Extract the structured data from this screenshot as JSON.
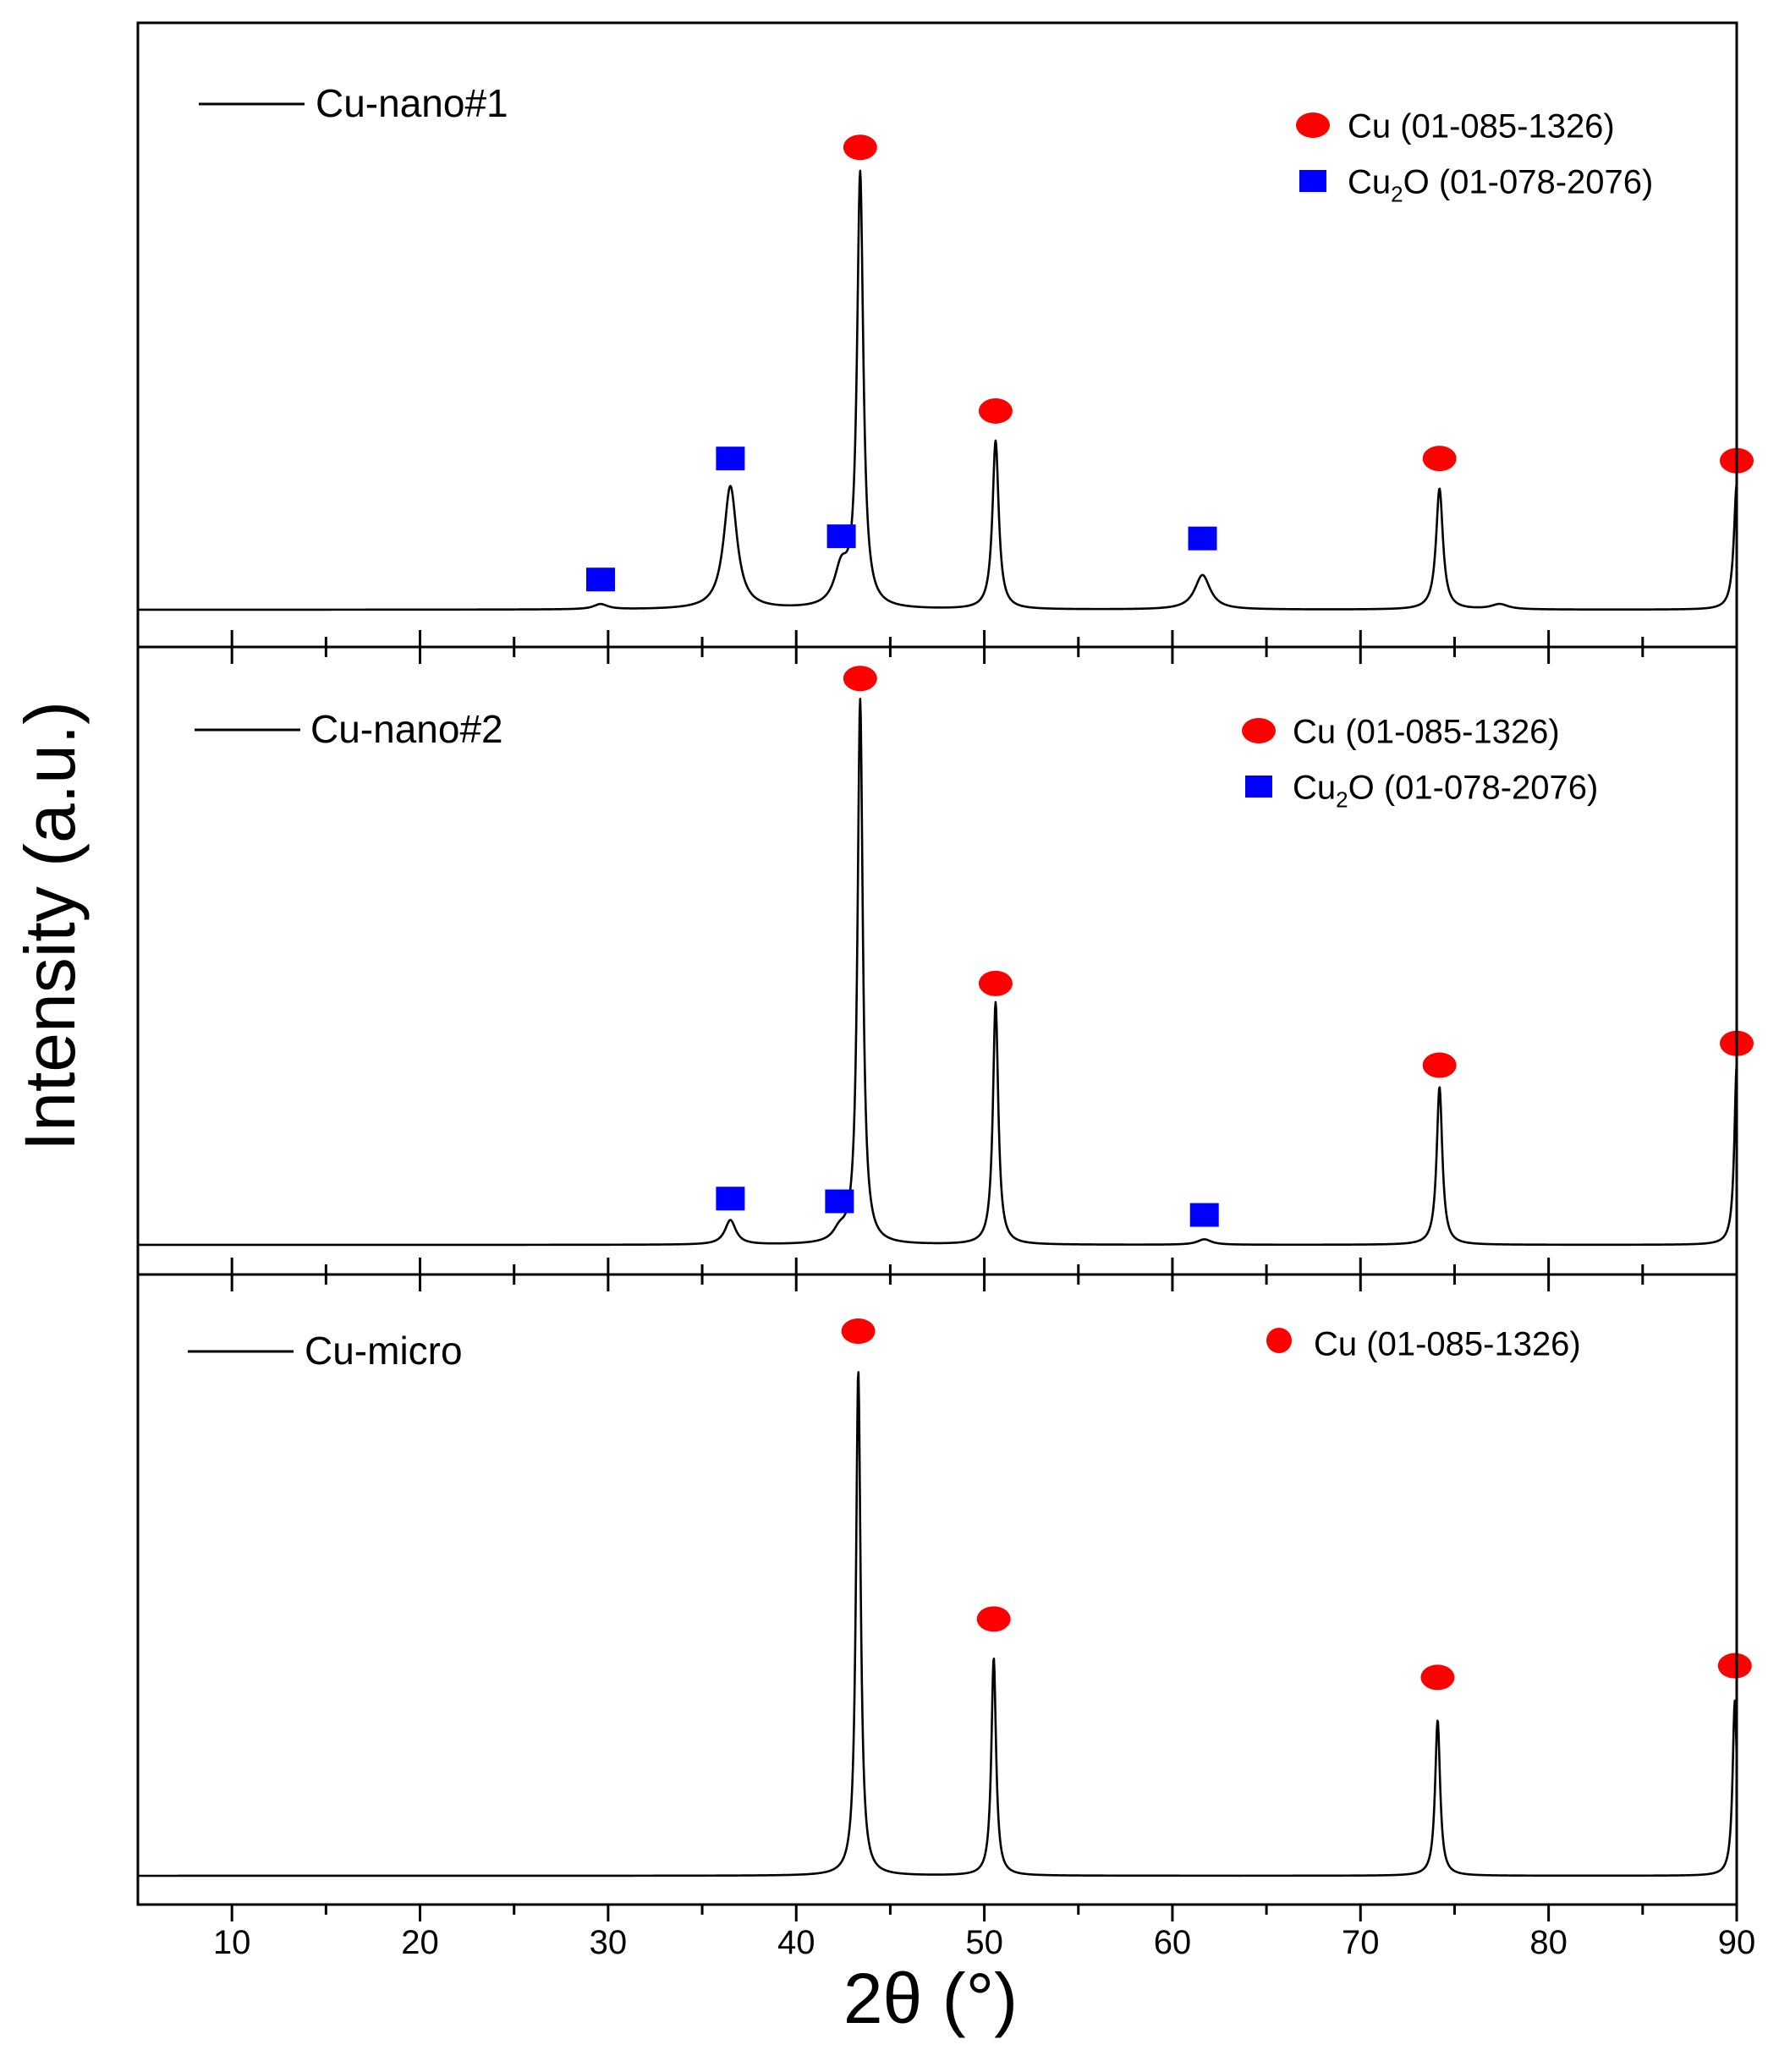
{
  "chart_data": {
    "type": "line",
    "xlabel": "2θ (°)",
    "ylabel": "Intensity (a.u.)",
    "xlim": [
      5,
      90
    ],
    "x_ticks": [
      10,
      20,
      30,
      40,
      50,
      60,
      70,
      80,
      90
    ],
    "marker_colors": {
      "Cu": "#ff0000",
      "Cu2O": "#0000ff"
    },
    "panels": [
      {
        "name": "Cu-nano#1",
        "label": "Cu-nano#1",
        "legend": [
          {
            "phase": "Cu",
            "marker": "ellipse",
            "text": "Cu (01-085-1326)",
            "text_main": "Cu",
            "sub": "",
            "text_rest": " (01-085-1326)"
          },
          {
            "phase": "Cu2O",
            "marker": "square",
            "text": "Cu2O (01-078-2076)",
            "text_main": "Cu",
            "sub": "2",
            "text_rest": "O (01-078-2076)"
          }
        ],
        "peaks": [
          {
            "x": 29.6,
            "height": 0.012,
            "width": 0.45,
            "phase": "Cu2O",
            "marker_height": 0.07
          },
          {
            "x": 36.5,
            "height": 0.285,
            "width": 0.42,
            "phase": "Cu2O",
            "marker_height": 0.35
          },
          {
            "x": 42.4,
            "height": 0.085,
            "width": 0.45,
            "phase": "Cu2O",
            "marker_height": 0.17
          },
          {
            "x": 43.4,
            "height": 1.0,
            "width": 0.2,
            "phase": "Cu",
            "marker_height": 1.07
          },
          {
            "x": 50.6,
            "height": 0.39,
            "width": 0.2,
            "phase": "Cu",
            "marker_height": 0.46
          },
          {
            "x": 61.6,
            "height": 0.08,
            "width": 0.5,
            "phase": "Cu2O",
            "marker_height": 0.165
          },
          {
            "x": 74.2,
            "height": 0.28,
            "width": 0.22,
            "phase": "Cu",
            "marker_height": 0.35
          },
          {
            "x": 77.4,
            "height": 0.012,
            "width": 0.55,
            "phase": "",
            "marker_height": 0
          },
          {
            "x": 90.0,
            "height": 0.29,
            "width": 0.18,
            "phase": "Cu",
            "marker_height": 0.345
          }
        ]
      },
      {
        "name": "Cu-nano#2",
        "label": "Cu-nano#2",
        "legend": [
          {
            "phase": "Cu",
            "marker": "ellipse",
            "text": "Cu (01-085-1326)",
            "text_main": "Cu",
            "sub": "",
            "text_rest": " (01-085-1326)"
          },
          {
            "phase": "Cu2O",
            "marker": "square",
            "text": "Cu2O (01-078-2076)",
            "text_main": "Cu",
            "sub": "2",
            "text_rest": "O (01-078-2076)"
          }
        ],
        "peaks": [
          {
            "x": 36.5,
            "height": 0.045,
            "width": 0.35,
            "phase": "Cu2O",
            "marker_height": 0.085
          },
          {
            "x": 42.3,
            "height": 0.02,
            "width": 0.4,
            "phase": "Cu2O",
            "marker_height": 0.08
          },
          {
            "x": 43.4,
            "height": 1.0,
            "width": 0.17,
            "phase": "Cu",
            "marker_height": 1.04
          },
          {
            "x": 50.6,
            "height": 0.445,
            "width": 0.17,
            "phase": "Cu",
            "marker_height": 0.48
          },
          {
            "x": 61.7,
            "height": 0.01,
            "width": 0.45,
            "phase": "Cu2O",
            "marker_height": 0.055
          },
          {
            "x": 74.2,
            "height": 0.29,
            "width": 0.18,
            "phase": "Cu",
            "marker_height": 0.33
          },
          {
            "x": 90.0,
            "height": 0.33,
            "width": 0.15,
            "phase": "Cu",
            "marker_height": 0.37
          }
        ]
      },
      {
        "name": "Cu-micro",
        "label": "Cu-micro",
        "legend": [
          {
            "phase": "Cu",
            "marker": "circle",
            "text": "Cu (01-085-1326)",
            "text_main": "Cu",
            "sub": "",
            "text_rest": " (01-085-1326)"
          }
        ],
        "peaks": [
          {
            "x": 43.3,
            "height": 0.65,
            "width": 0.15,
            "phase": "Cu",
            "marker_height": 0.7
          },
          {
            "x": 50.5,
            "height": 0.28,
            "width": 0.15,
            "phase": "Cu",
            "marker_height": 0.33
          },
          {
            "x": 74.1,
            "height": 0.2,
            "width": 0.16,
            "phase": "Cu",
            "marker_height": 0.255
          },
          {
            "x": 89.9,
            "height": 0.225,
            "width": 0.14,
            "phase": "Cu",
            "marker_height": 0.27
          }
        ]
      }
    ]
  }
}
